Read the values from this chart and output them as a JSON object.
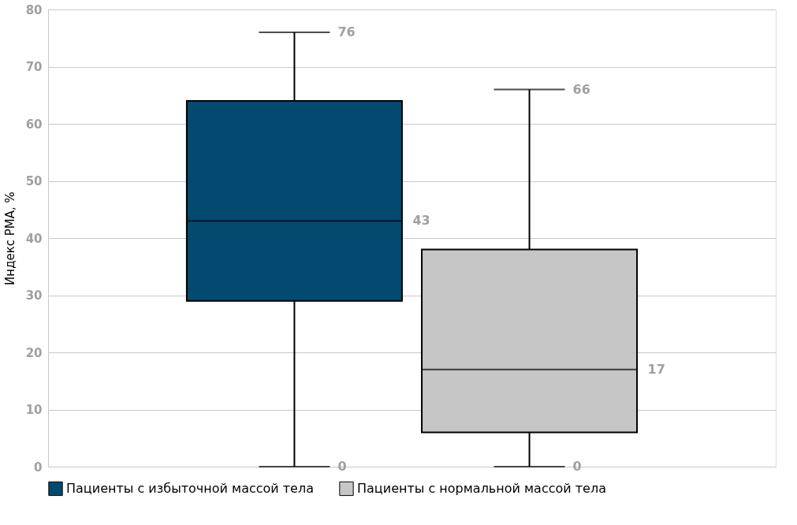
{
  "chart_data": {
    "type": "box",
    "ylabel": "Индекс РМА, %",
    "categories": [
      null
    ],
    "series": [
      {
        "name": "Пациенты с избыточной массой тела",
        "color": "#024a70",
        "boxes": [
          {
            "low": 0,
            "q1": 29,
            "median": 43,
            "q3": 64,
            "high": 76
          }
        ]
      },
      {
        "name": "Пациенты с нормальной массой тела",
        "color": "#c6c6c6",
        "boxes": [
          {
            "low": 0,
            "q1": 6,
            "median": 17,
            "q3": 38,
            "high": 66
          }
        ]
      }
    ],
    "ylim": [
      0,
      80
    ],
    "yticks": [
      0,
      10,
      20,
      30,
      40,
      50,
      60,
      70,
      80
    ],
    "grid": "y",
    "legend": "bottom",
    "annotations": [
      "76",
      "43",
      "0",
      "66",
      "17",
      "0"
    ]
  }
}
